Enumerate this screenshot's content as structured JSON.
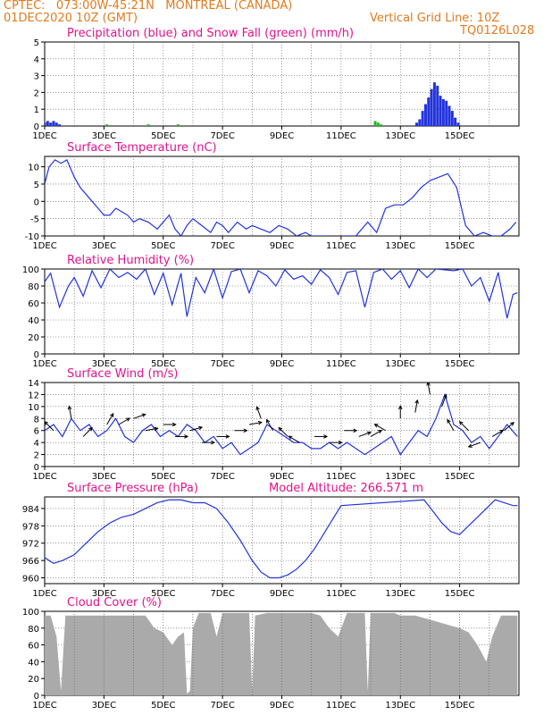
{
  "header": {
    "line1": "CPTEC:   073:00W-45:21N   MONTREAL (CANADA)",
    "line2": "01DEC2020 10Z (GMT)",
    "grid_note": "Vertical Grid Line: 10Z",
    "code": "TQ0126L028"
  },
  "colors": {
    "header": "#e07b1f",
    "title": "#e0148c",
    "line": "#2233dd",
    "snow": "#22bb22",
    "cloud": "#aaaaaa"
  },
  "chart_data": [
    {
      "id": "precip",
      "type": "bar",
      "title": "Precipitation (blue) and Snow Fall (green) (mm/h)",
      "ylim": [
        0,
        5
      ],
      "yticks": [
        0,
        1,
        2,
        3,
        4,
        5
      ],
      "xlabels": [
        "1DEC",
        "3DEC",
        "5DEC",
        "7DEC",
        "9DEC",
        "11DEC",
        "13DEC",
        "15DEC"
      ],
      "series": [
        {
          "name": "Precipitation",
          "x": [
            0.0,
            0.1,
            0.2,
            0.3,
            0.4,
            0.5,
            12.55,
            12.65,
            12.75,
            12.85,
            12.95,
            13.05,
            13.15,
            13.25,
            13.35,
            13.45,
            13.55,
            13.65,
            13.75,
            13.85,
            13.95
          ],
          "values": [
            0.2,
            0.3,
            0.2,
            0.3,
            0.2,
            0.1,
            0.2,
            0.4,
            0.9,
            1.3,
            1.7,
            2.2,
            2.6,
            2.4,
            1.8,
            1.6,
            1.5,
            1.2,
            0.9,
            0.5,
            0.2
          ]
        },
        {
          "name": "Snow Fall",
          "x": [
            2.1,
            3.5,
            4.5,
            11.15,
            11.25,
            11.35
          ],
          "values": [
            0.1,
            0.1,
            0.1,
            0.3,
            0.2,
            0.1
          ]
        }
      ]
    },
    {
      "id": "temp",
      "type": "line",
      "title": "Surface Temperature (nC)",
      "ylim": [
        -10,
        13
      ],
      "yticks": [
        -10,
        -5,
        0,
        5,
        10
      ],
      "xlabels": [
        "1DEC",
        "3DEC",
        "5DEC",
        "7DEC",
        "9DEC",
        "11DEC",
        "13DEC",
        "15DEC"
      ],
      "x": [
        0,
        0.15,
        0.35,
        0.55,
        0.75,
        1.0,
        1.2,
        1.5,
        1.8,
        2.0,
        2.2,
        2.4,
        2.6,
        2.8,
        3.0,
        3.2,
        3.5,
        3.8,
        4.0,
        4.2,
        4.4,
        4.6,
        4.8,
        5.0,
        5.3,
        5.6,
        5.8,
        6.0,
        6.2,
        6.5,
        6.8,
        7.0,
        7.3,
        7.6,
        7.9,
        8.2,
        8.5,
        8.8,
        9.0,
        9.2,
        9.5,
        9.8,
        10.1,
        10.5,
        10.7,
        10.9,
        11.2,
        11.5,
        11.8,
        12.1,
        12.4,
        12.7,
        13.0,
        13.3,
        13.6,
        13.9,
        14.2,
        14.5,
        14.8,
        15.1,
        15.4,
        15.7,
        15.9
      ],
      "values": [
        5,
        10,
        12,
        11,
        12,
        7,
        4,
        1,
        -2,
        -4,
        -4,
        -2,
        -3,
        -4,
        -6,
        -5,
        -6,
        -8,
        -6,
        -4,
        -8,
        -10,
        -7,
        -5,
        -7,
        -9,
        -6,
        -7,
        -9,
        -6,
        -8,
        -7,
        -8,
        -9,
        -7,
        -8,
        -10,
        -9,
        -10,
        -10,
        -10,
        -11,
        -10,
        -10,
        -8,
        -6,
        -9,
        -2,
        -1,
        -1,
        1,
        4,
        6,
        7,
        8,
        4,
        -7,
        -10,
        -9,
        -10,
        -10,
        -8,
        -6
      ]
    },
    {
      "id": "rh",
      "type": "line",
      "title": "Relative Humidity (%)",
      "ylim": [
        0,
        100
      ],
      "yticks": [
        0,
        20,
        40,
        60,
        80,
        100
      ],
      "xlabels": [
        "1DEC",
        "3DEC",
        "5DEC",
        "7DEC",
        "9DEC",
        "11DEC",
        "13DEC",
        "15DEC"
      ],
      "x": [
        0,
        0.2,
        0.5,
        0.8,
        1.0,
        1.3,
        1.6,
        1.9,
        2.2,
        2.5,
        2.8,
        3.1,
        3.4,
        3.7,
        4.0,
        4.3,
        4.6,
        4.8,
        5.1,
        5.4,
        5.7,
        6.0,
        6.3,
        6.6,
        6.9,
        7.2,
        7.5,
        7.8,
        8.1,
        8.4,
        8.7,
        9.0,
        9.3,
        9.6,
        9.9,
        10.2,
        10.5,
        10.8,
        11.1,
        11.4,
        11.7,
        12.0,
        12.3,
        12.6,
        12.9,
        13.2,
        13.5,
        13.8,
        14.1,
        14.4,
        14.7,
        15.0,
        15.3,
        15.6,
        15.8,
        15.95
      ],
      "values": [
        85,
        95,
        55,
        80,
        90,
        68,
        98,
        78,
        100,
        90,
        96,
        88,
        100,
        70,
        95,
        58,
        95,
        44,
        90,
        72,
        100,
        66,
        97,
        100,
        72,
        98,
        92,
        80,
        99,
        88,
        92,
        82,
        99,
        90,
        70,
        96,
        98,
        55,
        96,
        100,
        88,
        98,
        78,
        100,
        90,
        100,
        99,
        98,
        100,
        80,
        90,
        62,
        96,
        42,
        70,
        72
      ]
    },
    {
      "id": "wind",
      "type": "line",
      "title": "Surface Wind (m/s)",
      "ylim": [
        0,
        14
      ],
      "yticks": [
        0,
        2,
        4,
        6,
        8,
        10,
        12,
        14
      ],
      "xlabels": [
        "1DEC",
        "3DEC",
        "5DEC",
        "7DEC",
        "9DEC",
        "11DEC",
        "13DEC",
        "15DEC"
      ],
      "x": [
        0,
        0.3,
        0.6,
        0.9,
        1.2,
        1.5,
        1.8,
        2.1,
        2.4,
        2.7,
        3.0,
        3.3,
        3.6,
        3.9,
        4.2,
        4.5,
        4.8,
        5.1,
        5.4,
        5.7,
        6.0,
        6.3,
        6.6,
        6.9,
        7.2,
        7.5,
        7.8,
        8.1,
        8.4,
        8.7,
        9.0,
        9.3,
        9.6,
        9.9,
        10.2,
        10.5,
        10.8,
        11.1,
        11.4,
        11.7,
        12.0,
        12.3,
        12.6,
        12.9,
        13.2,
        13.5,
        13.8,
        14.1,
        14.4,
        14.7,
        15.0,
        15.3,
        15.6,
        15.95
      ],
      "values": [
        6,
        7,
        5,
        8,
        6,
        7,
        5,
        6,
        8,
        5,
        4,
        6,
        7,
        5,
        6,
        5,
        7,
        6,
        4,
        5,
        3,
        4,
        2,
        3,
        4,
        7,
        6,
        5,
        4,
        4,
        3,
        3,
        4,
        3,
        4,
        3,
        2,
        3,
        4,
        5,
        2,
        4,
        6,
        5,
        8,
        12,
        7,
        6,
        4,
        5,
        3,
        5,
        7,
        5
      ],
      "arrows_x": [
        0.3,
        0.9,
        1.3,
        2.1,
        2.5,
        3.0,
        3.4,
        4.0,
        4.4,
        4.9,
        5.3,
        5.8,
        6.4,
        6.9,
        7.3,
        7.7,
        8.2,
        8.6,
        9.1,
        9.6,
        10.1,
        10.6,
        11.0,
        11.5,
        12.0,
        12.5,
        13.0,
        13.4,
        13.8,
        14.3,
        14.7,
        15.1,
        15.5
      ],
      "arrows_speed": [
        6,
        8,
        5,
        7,
        7,
        8,
        6,
        7,
        5,
        6,
        4,
        5,
        6,
        7,
        8,
        6,
        5,
        4,
        5,
        4,
        6,
        5,
        5,
        6,
        8,
        9,
        12,
        10,
        6,
        6,
        4,
        5,
        6
      ],
      "arrows_dir_deg": [
        135,
        100,
        45,
        60,
        30,
        20,
        10,
        0,
        0,
        15,
        0,
        0,
        0,
        10,
        110,
        120,
        135,
        150,
        0,
        0,
        0,
        20,
        30,
        150,
        90,
        80,
        100,
        70,
        120,
        135,
        200,
        30,
        40
      ]
    },
    {
      "id": "pressure",
      "type": "line",
      "title": "Surface Pressure (hPa)",
      "subtitle": "Model Altitude: 266.571  m",
      "ylim": [
        958,
        988
      ],
      "yticks": [
        960,
        966,
        972,
        978,
        984
      ],
      "xlabels": [
        "1DEC",
        "3DEC",
        "5DEC",
        "7DEC",
        "9DEC",
        "11DEC",
        "13DEC",
        "15DEC"
      ],
      "x": [
        0,
        0.3,
        0.6,
        1.0,
        1.4,
        1.8,
        2.2,
        2.6,
        3.0,
        3.4,
        3.8,
        4.2,
        4.6,
        5.0,
        5.4,
        5.8,
        6.2,
        6.6,
        7.0,
        7.3,
        7.6,
        7.9,
        8.2,
        8.5,
        8.8,
        9.1,
        9.4,
        9.7,
        10.0,
        12.8,
        13.1,
        13.4,
        13.7,
        14.0,
        14.3,
        14.6,
        14.9,
        15.2,
        15.5,
        15.8,
        15.95
      ],
      "values": [
        967,
        965,
        966,
        968,
        972,
        976,
        979,
        981,
        982,
        984,
        986,
        987,
        987,
        986,
        986,
        984,
        979,
        973,
        966,
        962,
        960,
        960,
        961,
        963,
        966,
        970,
        975,
        980,
        985,
        987,
        983,
        979,
        976,
        975,
        978,
        981,
        984,
        987,
        986,
        985,
        985
      ]
    },
    {
      "id": "cloud",
      "type": "area",
      "title": "Cloud Cover (%)",
      "ylim": [
        0,
        100
      ],
      "yticks": [
        0,
        20,
        40,
        60,
        80,
        100
      ],
      "xlabels": [
        "1DEC",
        "3DEC",
        "5DEC",
        "7DEC",
        "9DEC",
        "11DEC",
        "13DEC",
        "15DEC"
      ],
      "x": [
        0,
        0.2,
        0.4,
        0.55,
        0.7,
        0.85,
        1.0,
        1.5,
        2.0,
        2.5,
        3.0,
        3.4,
        3.7,
        4.0,
        4.3,
        4.5,
        4.7,
        4.8,
        4.9,
        5.0,
        5.2,
        5.4,
        5.6,
        5.8,
        6.0,
        6.3,
        6.6,
        6.9,
        7.0,
        7.1,
        7.5,
        8.0,
        8.5,
        9.0,
        9.3,
        9.6,
        9.9,
        10.2,
        10.5,
        10.8,
        10.9,
        11.0,
        11.2,
        11.5,
        11.8,
        12.0,
        12.5,
        13.0,
        13.5,
        14.0,
        14.3,
        14.6,
        14.9,
        15.1,
        15.4,
        15.7,
        15.95
      ],
      "values": [
        95,
        95,
        70,
        5,
        95,
        95,
        95,
        95,
        95,
        95,
        95,
        95,
        80,
        75,
        60,
        70,
        75,
        2,
        5,
        80,
        98,
        98,
        98,
        70,
        98,
        98,
        98,
        98,
        5,
        95,
        98,
        98,
        98,
        98,
        95,
        80,
        70,
        98,
        98,
        98,
        5,
        98,
        98,
        98,
        98,
        95,
        95,
        90,
        85,
        80,
        75,
        60,
        40,
        70,
        95,
        95,
        95
      ]
    }
  ]
}
